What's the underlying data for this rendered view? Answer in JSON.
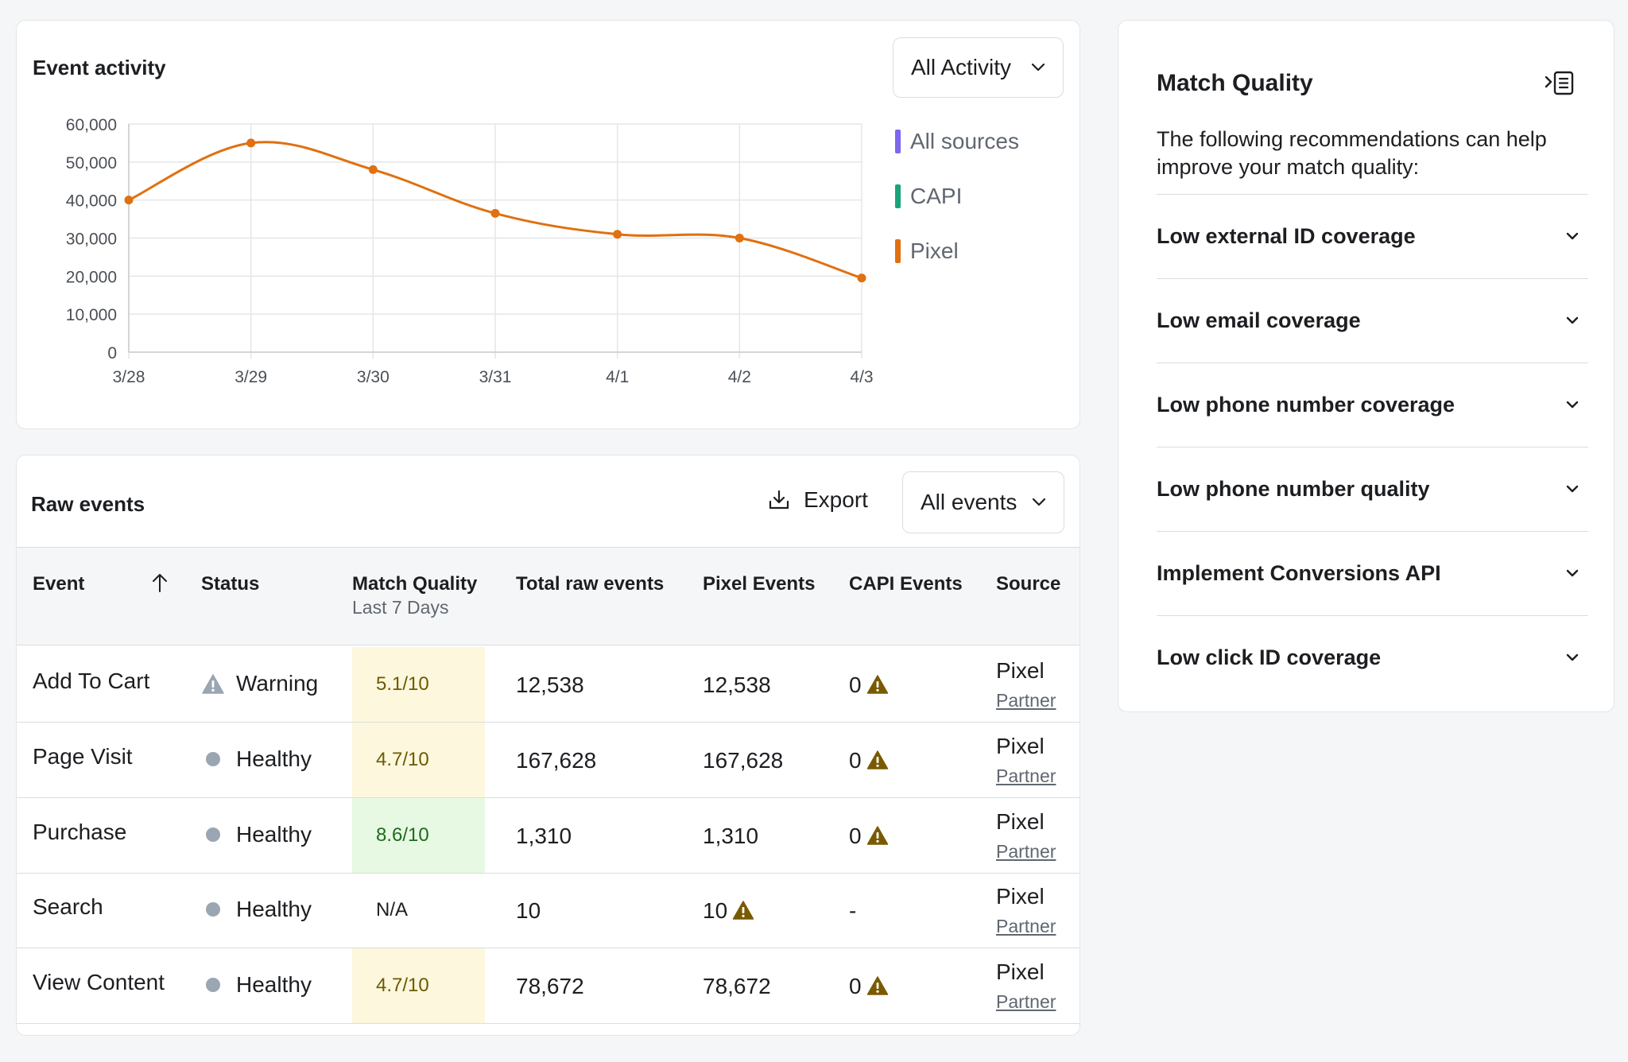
{
  "activity": {
    "title": "Event activity",
    "filter": "All Activity"
  },
  "chart_data": {
    "type": "line",
    "title": "Event activity",
    "categories": [
      "3/28",
      "3/29",
      "3/30",
      "3/31",
      "4/1",
      "4/2",
      "4/3"
    ],
    "yticks": [
      "60,000",
      "50,000",
      "40,000",
      "30,000",
      "20,000",
      "10,000",
      "0"
    ],
    "ylim": [
      0,
      60000
    ],
    "grid": true,
    "legend_position": "right",
    "legend": [
      {
        "name": "All sources",
        "color": "#7b68ee"
      },
      {
        "name": "CAPI",
        "color": "#1aa37a"
      },
      {
        "name": "Pixel",
        "color": "#e07010"
      }
    ],
    "series": [
      {
        "name": "Pixel",
        "color": "#e07010",
        "values": [
          40000,
          55000,
          48000,
          36500,
          31000,
          30000,
          19500
        ]
      }
    ]
  },
  "raw": {
    "title": "Raw events",
    "export_label": "Export",
    "filter": "All events",
    "headers": {
      "event": "Event",
      "status": "Status",
      "mq": "Match Quality",
      "mq_sub": "Last 7 Days",
      "total": "Total raw events",
      "pixel": "Pixel Events",
      "capi": "CAPI Events",
      "source": "Source"
    },
    "rows": [
      {
        "event": "Add To Cart",
        "status": "Warning",
        "mq": "5.1/10",
        "total": "12,538",
        "pixel": "12,538",
        "capi": "0",
        "source": "Pixel",
        "partner": "Partner"
      },
      {
        "event": "Page Visit",
        "status": "Healthy",
        "mq": "4.7/10",
        "total": "167,628",
        "pixel": "167,628",
        "capi": "0",
        "source": "Pixel",
        "partner": "Partner"
      },
      {
        "event": "Purchase",
        "status": "Healthy",
        "mq": "8.6/10",
        "total": "1,310",
        "pixel": "1,310",
        "capi": "0",
        "source": "Pixel",
        "partner": "Partner"
      },
      {
        "event": "Search",
        "status": "Healthy",
        "mq": "N/A",
        "total": "10",
        "pixel": "10",
        "capi": "-",
        "source": "Pixel",
        "partner": "Partner"
      },
      {
        "event": "View Content",
        "status": "Healthy",
        "mq": "4.7/10",
        "total": "78,672",
        "pixel": "78,672",
        "capi": "0",
        "source": "Pixel",
        "partner": "Partner"
      }
    ],
    "colors": {
      "warning_icon": "#7a5a00",
      "status_dot": "#9aa7b2",
      "mq_yellow": "#fdf7de",
      "mq_green": "#e7f8e3"
    }
  },
  "match_quality": {
    "title": "Match Quality",
    "description": "The following recommendations can help improve your match quality:",
    "items": [
      "Low external ID coverage",
      "Low email coverage",
      "Low phone number coverage",
      "Low phone number quality",
      "Implement Conversions API",
      "Low click ID coverage"
    ]
  }
}
